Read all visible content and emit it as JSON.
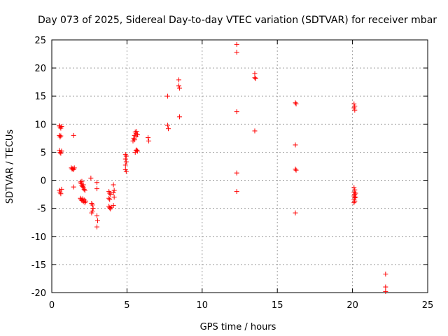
{
  "chart_data": {
    "type": "scatter",
    "title": "Day 073 of 2025, Sidereal Day-to-day VTEC variation (SDTVAR) for receiver mbar",
    "xlabel": "GPS time / hours",
    "ylabel": "SDTVAR / TECUs",
    "xlim": [
      0,
      25
    ],
    "ylim": [
      -20,
      25
    ],
    "xticks": [
      0,
      5,
      10,
      15,
      20,
      25
    ],
    "yticks": [
      -20,
      -15,
      -10,
      -5,
      0,
      5,
      10,
      15,
      20,
      25
    ],
    "grid": true,
    "marker": "+",
    "color": "#ff0000",
    "points": [
      [
        0.5,
        9.7
      ],
      [
        0.55,
        9.5
      ],
      [
        0.6,
        9.3
      ],
      [
        0.65,
        9.6
      ],
      [
        0.5,
        8.0
      ],
      [
        0.55,
        7.7
      ],
      [
        0.6,
        7.9
      ],
      [
        0.5,
        5.3
      ],
      [
        0.55,
        5.0
      ],
      [
        0.6,
        4.8
      ],
      [
        0.65,
        5.2
      ],
      [
        0.5,
        -1.8
      ],
      [
        0.55,
        -2.1
      ],
      [
        0.6,
        -2.4
      ],
      [
        0.65,
        -1.6
      ],
      [
        1.3,
        2.2
      ],
      [
        1.35,
        2.0
      ],
      [
        1.4,
        2.1
      ],
      [
        1.45,
        1.9
      ],
      [
        1.5,
        2.2
      ],
      [
        1.45,
        8.0
      ],
      [
        1.45,
        -1.2
      ],
      [
        1.9,
        -0.3
      ],
      [
        1.95,
        -0.6
      ],
      [
        2.0,
        -0.9
      ],
      [
        2.05,
        -1.1
      ],
      [
        2.1,
        -1.3
      ],
      [
        2.15,
        -1.6
      ],
      [
        2.2,
        -1.8
      ],
      [
        2.0,
        -0.2
      ],
      [
        2.1,
        -0.8
      ],
      [
        1.9,
        -3.2
      ],
      [
        1.95,
        -3.4
      ],
      [
        2.0,
        -3.6
      ],
      [
        2.05,
        -3.3
      ],
      [
        2.1,
        -3.8
      ],
      [
        2.15,
        -3.5
      ],
      [
        2.2,
        -4.0
      ],
      [
        2.25,
        -3.7
      ],
      [
        2.6,
        0.4
      ],
      [
        2.65,
        -4.1
      ],
      [
        2.7,
        -4.4
      ],
      [
        2.75,
        -5.0
      ],
      [
        2.7,
        -5.5
      ],
      [
        2.65,
        -5.8
      ],
      [
        3.0,
        -0.4
      ],
      [
        3.0,
        -1.5
      ],
      [
        3.0,
        -6.3
      ],
      [
        3.05,
        -7.2
      ],
      [
        3.0,
        -8.3
      ],
      [
        3.8,
        -2.0
      ],
      [
        3.85,
        -2.3
      ],
      [
        3.9,
        -2.5
      ],
      [
        3.8,
        -3.2
      ],
      [
        3.85,
        -3.4
      ],
      [
        3.8,
        -4.6
      ],
      [
        3.85,
        -4.9
      ],
      [
        3.9,
        -5.1
      ],
      [
        3.95,
        -4.8
      ],
      [
        4.1,
        -0.8
      ],
      [
        4.15,
        -1.8
      ],
      [
        4.1,
        -2.2
      ],
      [
        4.15,
        -3.0
      ],
      [
        4.1,
        -4.5
      ],
      [
        4.9,
        4.6
      ],
      [
        4.95,
        4.3
      ],
      [
        4.9,
        3.8
      ],
      [
        4.95,
        3.3
      ],
      [
        4.9,
        2.7
      ],
      [
        4.9,
        1.9
      ],
      [
        4.95,
        1.6
      ],
      [
        5.4,
        7.0
      ],
      [
        5.45,
        7.5
      ],
      [
        5.5,
        8.0
      ],
      [
        5.55,
        8.6
      ],
      [
        5.6,
        8.3
      ],
      [
        5.65,
        8.7
      ],
      [
        5.7,
        8.1
      ],
      [
        5.5,
        7.2
      ],
      [
        5.6,
        7.8
      ],
      [
        5.55,
        5.0
      ],
      [
        5.6,
        5.3
      ],
      [
        5.65,
        5.4
      ],
      [
        5.7,
        5.2
      ],
      [
        6.4,
        7.6
      ],
      [
        6.45,
        7.0
      ],
      [
        7.7,
        15.0
      ],
      [
        7.7,
        9.8
      ],
      [
        7.75,
        9.2
      ],
      [
        8.45,
        17.9
      ],
      [
        8.45,
        16.8
      ],
      [
        8.5,
        16.4
      ],
      [
        8.5,
        11.3
      ],
      [
        12.3,
        24.2
      ],
      [
        12.3,
        22.8
      ],
      [
        12.3,
        12.2
      ],
      [
        12.3,
        1.3
      ],
      [
        12.3,
        -2.0
      ],
      [
        13.5,
        19.0
      ],
      [
        13.5,
        18.3
      ],
      [
        13.55,
        18.1
      ],
      [
        13.5,
        8.8
      ],
      [
        16.2,
        13.8
      ],
      [
        16.25,
        13.6
      ],
      [
        16.2,
        6.3
      ],
      [
        16.2,
        2.0
      ],
      [
        16.25,
        1.8
      ],
      [
        16.2,
        -5.8
      ],
      [
        20.1,
        13.6
      ],
      [
        20.15,
        13.2
      ],
      [
        20.1,
        12.9
      ],
      [
        20.15,
        12.5
      ],
      [
        20.1,
        -1.3
      ],
      [
        20.15,
        -1.7
      ],
      [
        20.1,
        -2.1
      ],
      [
        20.15,
        -2.5
      ],
      [
        20.1,
        -2.8
      ],
      [
        20.15,
        -3.1
      ],
      [
        20.1,
        -3.4
      ],
      [
        20.15,
        -3.7
      ],
      [
        20.1,
        -4.0
      ],
      [
        20.2,
        -2.3
      ],
      [
        20.2,
        -3.0
      ],
      [
        22.2,
        -16.7
      ],
      [
        22.2,
        -19.0
      ],
      [
        22.2,
        -19.8
      ]
    ]
  }
}
